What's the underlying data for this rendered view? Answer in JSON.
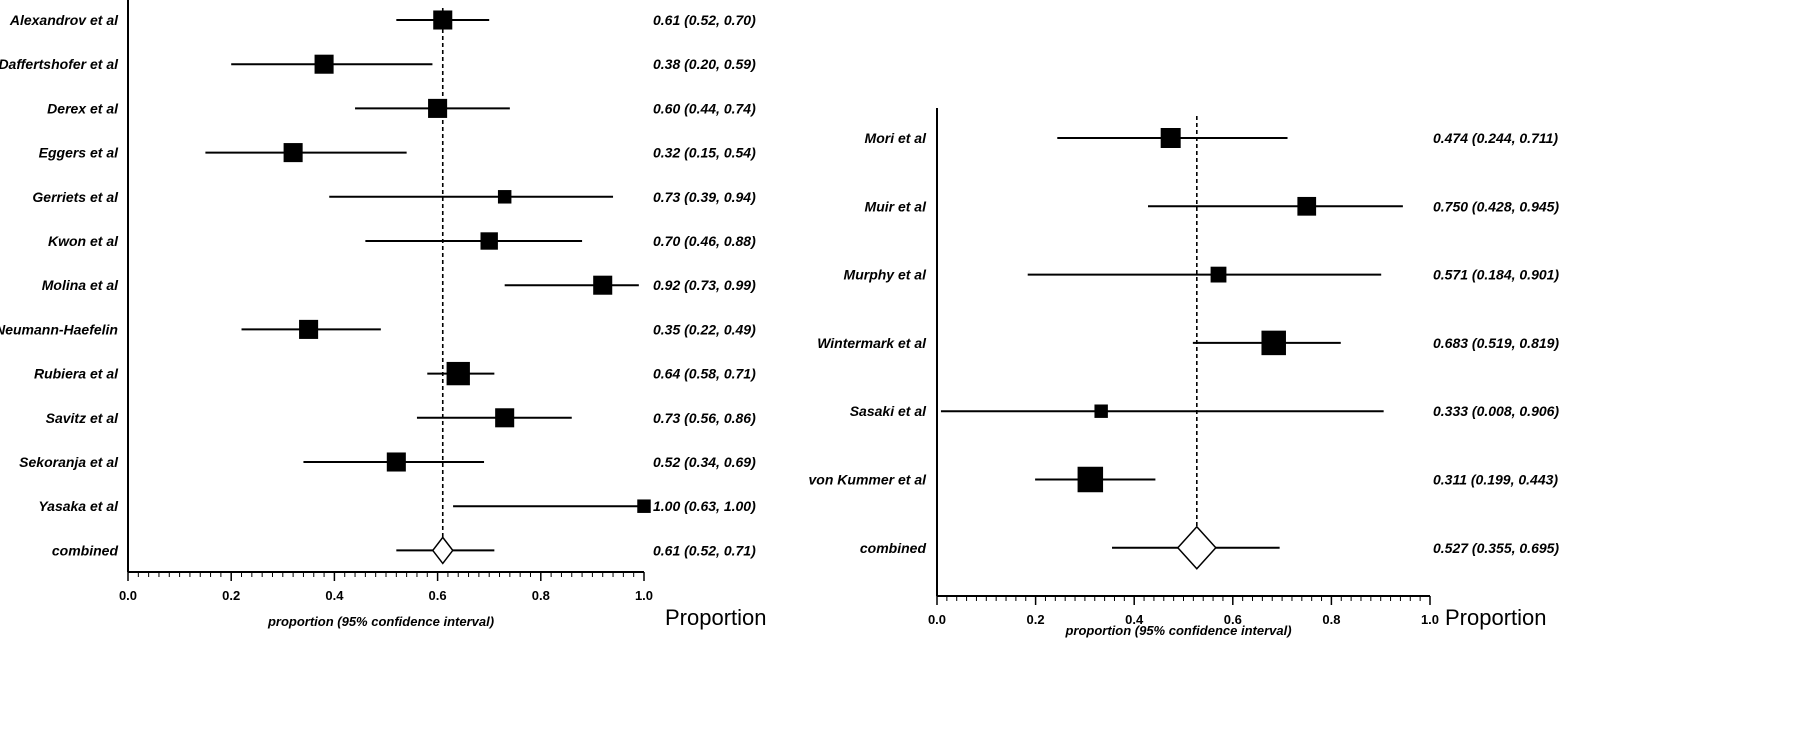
{
  "chart_data": [
    {
      "type": "forest",
      "xlabel": "proportion (95% confidence interval)",
      "unit_label": "Proportion",
      "xlim": [
        0.0,
        1.0
      ],
      "xticks": [
        "0.0",
        "0.2",
        "0.4",
        "0.6",
        "0.8",
        "1.0"
      ],
      "reference_line": 0.61,
      "studies": [
        {
          "name": "Alexandrov et al",
          "estimate": 0.61,
          "lower": 0.52,
          "upper": 0.7,
          "ci_text": "0.61 (0.52, 0.70)",
          "weight": 3
        },
        {
          "name": "Daffertshofer et al",
          "estimate": 0.38,
          "lower": 0.2,
          "upper": 0.59,
          "ci_text": "0.38 (0.20, 0.59)",
          "weight": 3
        },
        {
          "name": "Derex et al",
          "estimate": 0.6,
          "lower": 0.44,
          "upper": 0.74,
          "ci_text": "0.60 (0.44, 0.74)",
          "weight": 3
        },
        {
          "name": "Eggers et al",
          "estimate": 0.32,
          "lower": 0.15,
          "upper": 0.54,
          "ci_text": "0.32 (0.15, 0.54)",
          "weight": 3
        },
        {
          "name": "Gerriets et al",
          "estimate": 0.73,
          "lower": 0.39,
          "upper": 0.94,
          "ci_text": "0.73 (0.39, 0.94)",
          "weight": 1.5
        },
        {
          "name": "Kwon et al",
          "estimate": 0.7,
          "lower": 0.46,
          "upper": 0.88,
          "ci_text": "0.70 (0.46, 0.88)",
          "weight": 2.5
        },
        {
          "name": "Molina et al",
          "estimate": 0.92,
          "lower": 0.73,
          "upper": 0.99,
          "ci_text": "0.92 (0.73, 0.99)",
          "weight": 3
        },
        {
          "name": "Neumann-Haefelin",
          "estimate": 0.35,
          "lower": 0.22,
          "upper": 0.49,
          "ci_text": "0.35 (0.22, 0.49)",
          "weight": 3
        },
        {
          "name": "Rubiera et al",
          "estimate": 0.64,
          "lower": 0.58,
          "upper": 0.71,
          "ci_text": "0.64 (0.58, 0.71)",
          "weight": 4.5
        },
        {
          "name": "Savitz et al",
          "estimate": 0.73,
          "lower": 0.56,
          "upper": 0.86,
          "ci_text": "0.73 (0.56, 0.86)",
          "weight": 3
        },
        {
          "name": "Sekoranja et al",
          "estimate": 0.52,
          "lower": 0.34,
          "upper": 0.69,
          "ci_text": "0.52 (0.34, 0.69)",
          "weight": 3
        },
        {
          "name": "Yasaka et al",
          "estimate": 1.0,
          "lower": 0.63,
          "upper": 1.0,
          "ci_text": "1.00 (0.63, 1.00)",
          "weight": 1.5
        }
      ],
      "combined": {
        "name": "combined",
        "estimate": 0.61,
        "lower": 0.52,
        "upper": 0.71,
        "ci_text": "0.61 (0.52, 0.71)"
      }
    },
    {
      "type": "forest",
      "xlabel": "proportion (95% confidence interval)",
      "unit_label": "Proportion",
      "xlim": [
        0.0,
        1.0
      ],
      "xticks": [
        "0.0",
        "0.2",
        "0.4",
        "0.6",
        "0.8",
        "1.0"
      ],
      "reference_line": 0.527,
      "studies": [
        {
          "name": "Mori et al",
          "estimate": 0.474,
          "lower": 0.244,
          "upper": 0.711,
          "ci_text": "0.474 (0.244, 0.711)",
          "weight": 4
        },
        {
          "name": "Muir et al",
          "estimate": 0.75,
          "lower": 0.428,
          "upper": 0.945,
          "ci_text": "0.750 (0.428, 0.945)",
          "weight": 3.5
        },
        {
          "name": "Murphy et al",
          "estimate": 0.571,
          "lower": 0.184,
          "upper": 0.901,
          "ci_text": "0.571 (0.184, 0.901)",
          "weight": 2.5
        },
        {
          "name": "Wintermark et al",
          "estimate": 0.683,
          "lower": 0.519,
          "upper": 0.819,
          "ci_text": "0.683 (0.519, 0.819)",
          "weight": 6
        },
        {
          "name": "Sasaki et al",
          "estimate": 0.333,
          "lower": 0.008,
          "upper": 0.906,
          "ci_text": "0.333 (0.008, 0.906)",
          "weight": 1.8
        },
        {
          "name": "von Kummer et al",
          "estimate": 0.311,
          "lower": 0.199,
          "upper": 0.443,
          "ci_text": "0.311 (0.199, 0.443)",
          "weight": 6.5
        }
      ],
      "combined": {
        "name": "combined",
        "estimate": 0.527,
        "lower": 0.355,
        "upper": 0.695,
        "ci_text": "0.527 (0.355, 0.695)"
      }
    }
  ]
}
